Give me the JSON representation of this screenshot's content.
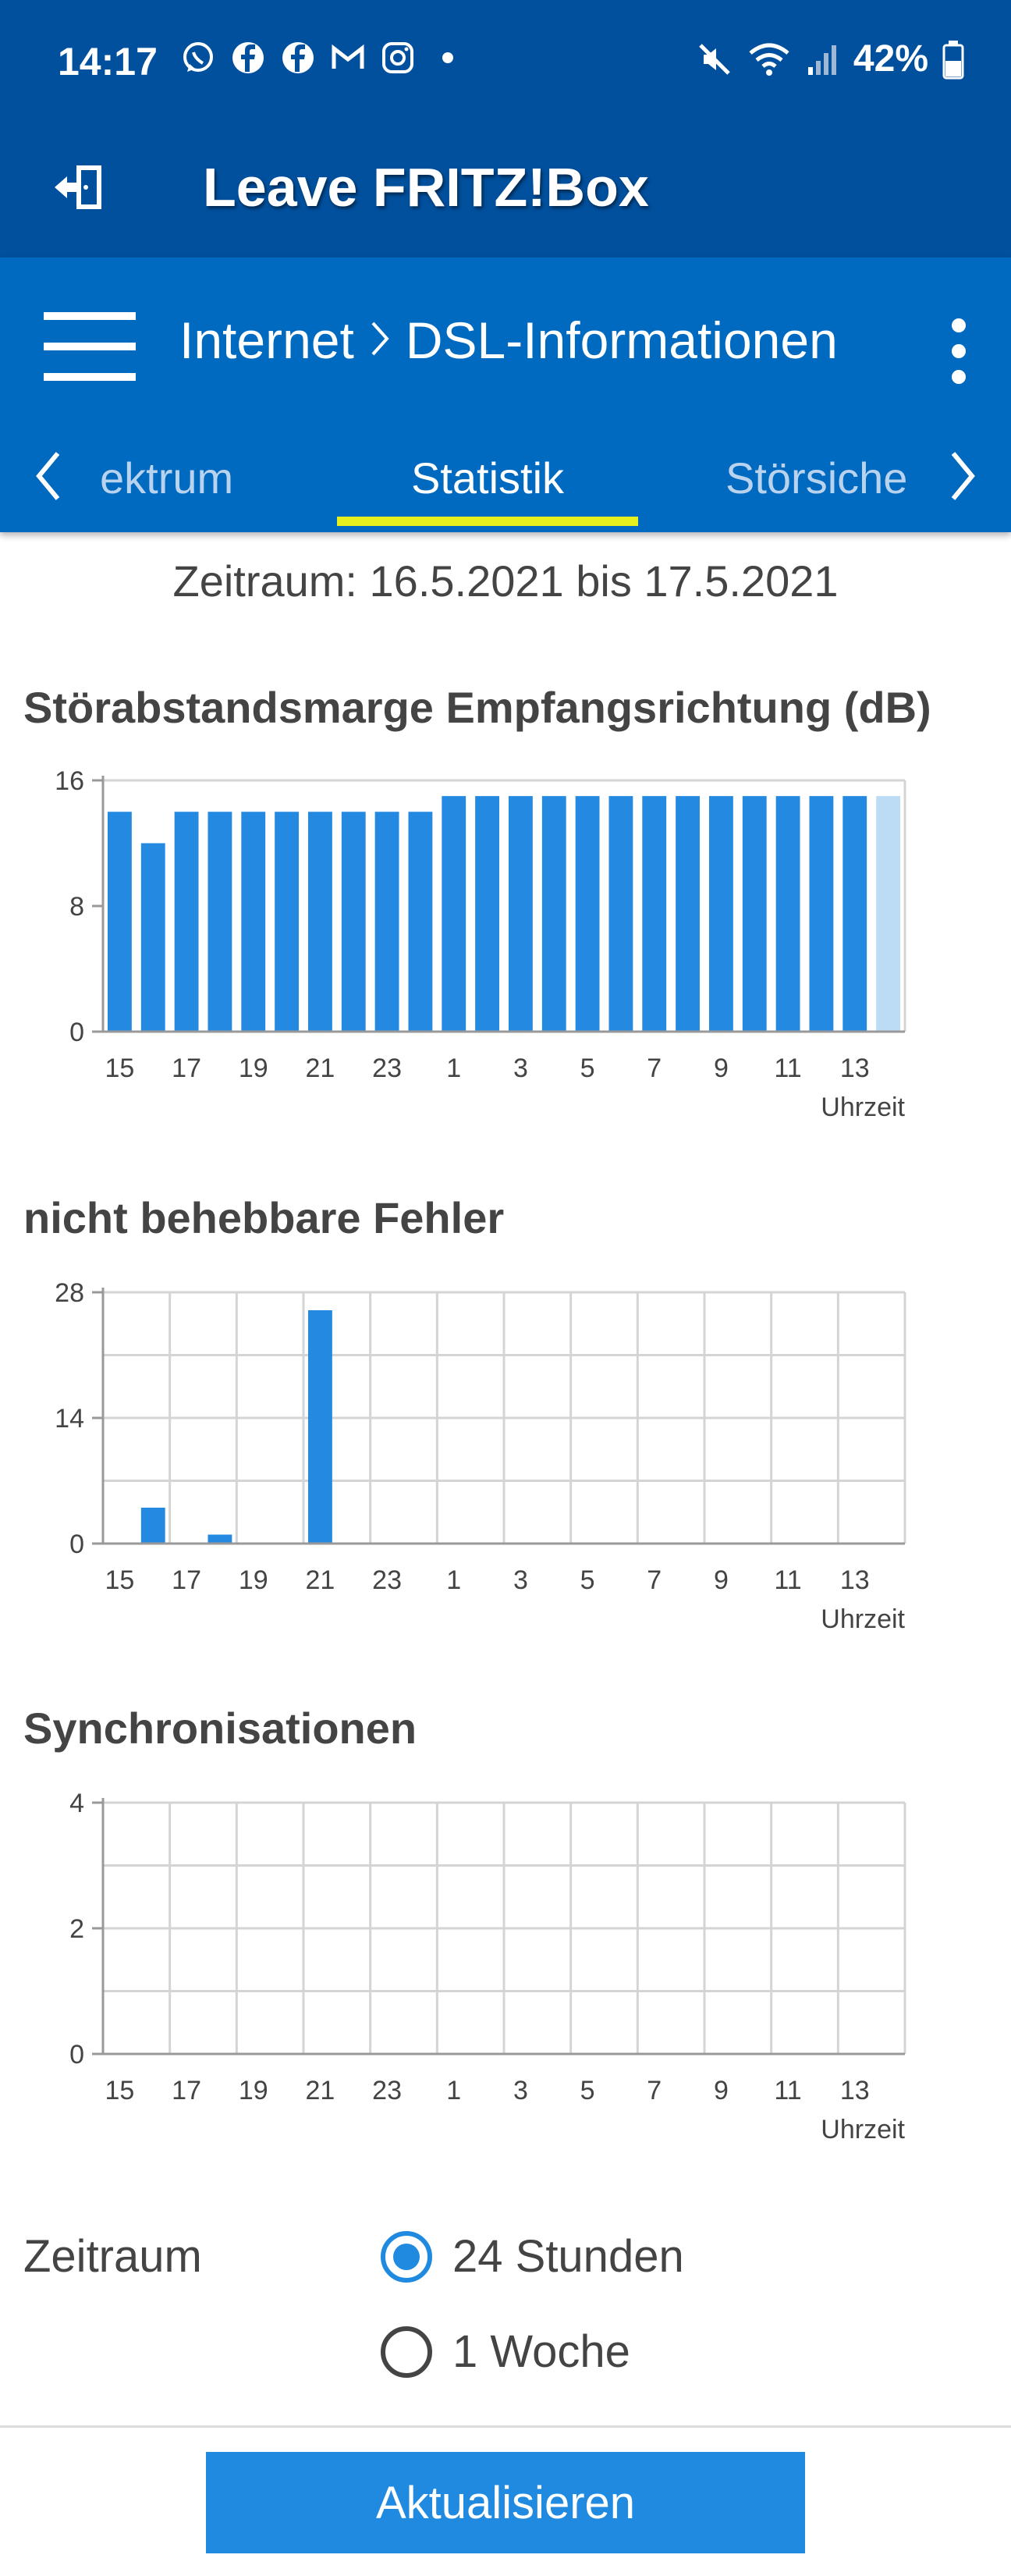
{
  "status_bar": {
    "time": "14:17",
    "battery": "42%",
    "app_icons": [
      "whatsapp-icon",
      "facebook-icon",
      "facebook-icon",
      "gmail-icon",
      "instagram-icon",
      "dot-icon"
    ],
    "system_icons": [
      "mute-icon",
      "wifi-icon",
      "signal-icon",
      "battery-icon"
    ]
  },
  "header": {
    "leave_label": "Leave FRITZ!Box"
  },
  "nav": {
    "breadcrumb_parent": "Internet",
    "breadcrumb_current": "DSL-Informationen",
    "tabs": [
      {
        "label": "ektrum"
      },
      {
        "label": "Statistik"
      },
      {
        "label": "Störsiche"
      }
    ]
  },
  "period_text": "Zeitraum: 16.5.2021 bis 17.5.2021",
  "colors": {
    "bar": "#2489e0",
    "bar_partial": "#bcdcf6",
    "header_dark": "#00509e",
    "header": "#0069c0",
    "tab_indicator": "#e6f01f"
  },
  "chart_data": [
    {
      "type": "bar",
      "title": "Störabstandsmarge Empfangsrichtung (dB)",
      "xlabel": "Uhrzeit",
      "ylabel": "",
      "ylim": [
        0,
        16
      ],
      "yticks": [
        "0",
        "8",
        "16"
      ],
      "xticks": [
        "15",
        "17",
        "19",
        "21",
        "23",
        "1",
        "3",
        "5",
        "7",
        "9",
        "11",
        "13"
      ],
      "grid": false,
      "values": [
        14,
        12,
        14,
        14,
        14,
        14,
        14,
        14,
        14,
        14,
        15,
        15,
        15,
        15,
        15,
        15,
        15,
        15,
        15,
        15,
        15,
        15,
        15,
        15
      ],
      "partial_last": true
    },
    {
      "type": "bar",
      "title": "nicht behebbare Fehler",
      "xlabel": "Uhrzeit",
      "ylabel": "",
      "ylim": [
        0,
        28
      ],
      "yticks": [
        "0",
        "14",
        "28"
      ],
      "xticks": [
        "15",
        "17",
        "19",
        "21",
        "23",
        "1",
        "3",
        "5",
        "7",
        "9",
        "11",
        "13"
      ],
      "grid": true,
      "values": [
        0,
        4,
        0,
        1,
        0,
        0,
        26,
        0,
        0,
        0,
        0,
        0,
        0,
        0,
        0,
        0,
        0,
        0,
        0,
        0,
        0,
        0,
        0,
        0
      ],
      "partial_last": false
    },
    {
      "type": "bar",
      "title": "Synchronisationen",
      "xlabel": "Uhrzeit",
      "ylabel": "",
      "ylim": [
        0,
        4
      ],
      "yticks": [
        "0",
        "2",
        "4"
      ],
      "xticks": [
        "15",
        "17",
        "19",
        "21",
        "23",
        "1",
        "3",
        "5",
        "7",
        "9",
        "11",
        "13"
      ],
      "grid": true,
      "values": [
        0,
        0,
        0,
        0,
        0,
        0,
        0,
        0,
        0,
        0,
        0,
        0,
        0,
        0,
        0,
        0,
        0,
        0,
        0,
        0,
        0,
        0,
        0,
        0
      ],
      "partial_last": false
    }
  ],
  "form": {
    "period_label": "Zeitraum",
    "options": [
      {
        "label": "24 Stunden",
        "selected": true
      },
      {
        "label": "1 Woche",
        "selected": false
      }
    ],
    "update_label": "Aktualisieren"
  }
}
